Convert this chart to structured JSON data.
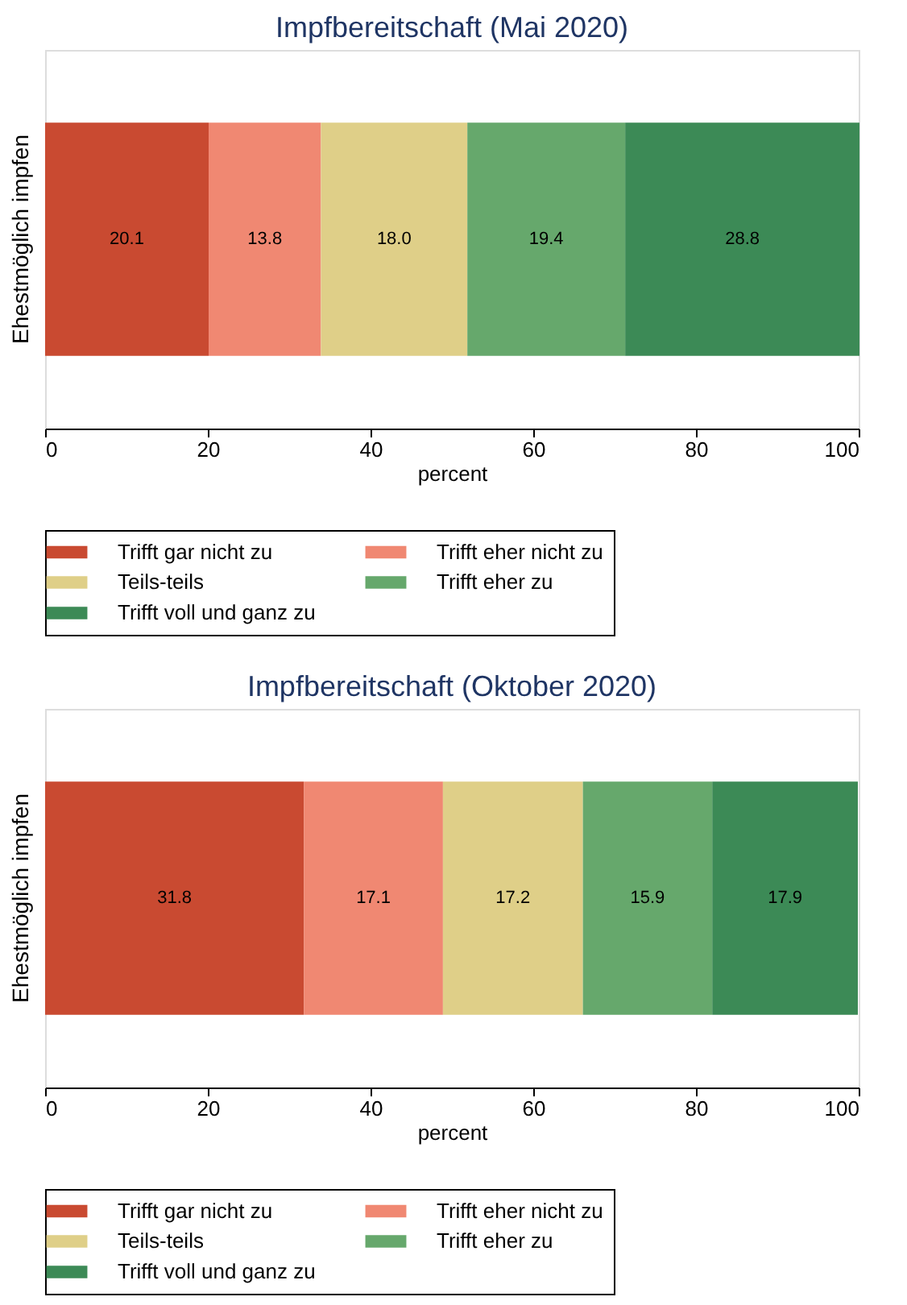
{
  "chart_data": [
    {
      "type": "bar",
      "title": "Impfbereitschaft (Mai 2020)",
      "orientation": "horizontal",
      "stacked": true,
      "categories": [
        "Ehestmöglich impfen"
      ],
      "xlabel": "percent",
      "xlim": [
        0,
        100
      ],
      "xticks": [
        0,
        20,
        40,
        60,
        80,
        100
      ],
      "grid": false,
      "legend": "bottom",
      "series": [
        {
          "name": "Trifft gar nicht zu",
          "color": "#c94a31",
          "values": [
            20.1
          ],
          "value_labels": [
            "20.1"
          ]
        },
        {
          "name": "Trifft eher nicht zu",
          "color": "#f08872",
          "values": [
            13.8
          ],
          "value_labels": [
            "13.8"
          ]
        },
        {
          "name": "Teils-teils",
          "color": "#dfcf88",
          "values": [
            18.0
          ],
          "value_labels": [
            "18.0"
          ]
        },
        {
          "name": "Trifft eher zu",
          "color": "#66a86c",
          "values": [
            19.4
          ],
          "value_labels": [
            "19.4"
          ]
        },
        {
          "name": "Trifft voll und ganz zu",
          "color": "#3c8a56",
          "values": [
            28.8
          ],
          "value_labels": [
            "28.8"
          ]
        }
      ]
    },
    {
      "type": "bar",
      "title": "Impfbereitschaft (Oktober 2020)",
      "orientation": "horizontal",
      "stacked": true,
      "categories": [
        "Ehestmöglich impfen"
      ],
      "xlabel": "percent",
      "xlim": [
        0,
        100
      ],
      "xticks": [
        0,
        20,
        40,
        60,
        80,
        100
      ],
      "grid": false,
      "legend": "bottom",
      "series": [
        {
          "name": "Trifft gar nicht zu",
          "color": "#c94a31",
          "values": [
            31.8
          ],
          "value_labels": [
            "31.8"
          ]
        },
        {
          "name": "Trifft eher nicht zu",
          "color": "#f08872",
          "values": [
            17.1
          ],
          "value_labels": [
            "17.1"
          ]
        },
        {
          "name": "Teils-teils",
          "color": "#dfcf88",
          "values": [
            17.2
          ],
          "value_labels": [
            "17.2"
          ]
        },
        {
          "name": "Trifft eher zu",
          "color": "#66a86c",
          "values": [
            15.9
          ],
          "value_labels": [
            "15.9"
          ]
        },
        {
          "name": "Trifft voll und ganz zu",
          "color": "#3c8a56",
          "values": [
            17.9
          ],
          "value_labels": [
            "17.9"
          ]
        }
      ]
    }
  ]
}
